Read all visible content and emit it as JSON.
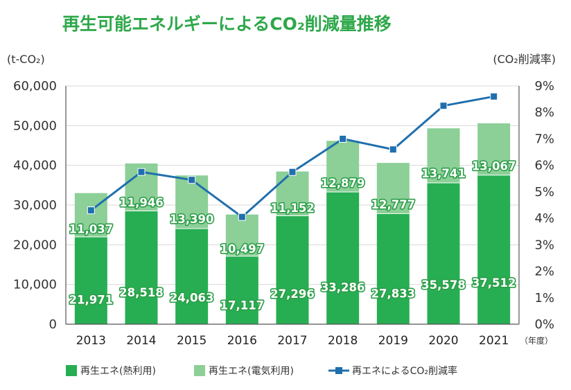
{
  "chart_data": {
    "type": "bar",
    "title": "再生可能エネルギーによるCO₂削減量推移",
    "ylabel": "(t-CO₂)",
    "y2label": "(CO₂削減率)",
    "xunit": "（年度）",
    "categories": [
      "2013",
      "2014",
      "2015",
      "2016",
      "2017",
      "2018",
      "2019",
      "2020",
      "2021"
    ],
    "ylim": [
      0,
      60000
    ],
    "y_ticks": [
      "0",
      "10,000",
      "20,000",
      "30,000",
      "40,000",
      "50,000",
      "60,000"
    ],
    "y2lim": [
      0,
      9
    ],
    "y2_ticks": [
      "0%",
      "1%",
      "2%",
      "3%",
      "4%",
      "5%",
      "6%",
      "7%",
      "8%",
      "9%"
    ],
    "grid": true,
    "legend_position": "bottom",
    "series": [
      {
        "name": "再生エネ(熱利用)",
        "kind": "bar-stack",
        "color": "#27ae53",
        "values": [
          21971,
          28518,
          24063,
          17117,
          27296,
          33286,
          27833,
          35578,
          37512
        ],
        "labels": [
          "21,971",
          "28,518",
          "24,063",
          "17,117",
          "27,296",
          "33,286",
          "27,833",
          "35,578",
          "37,512"
        ]
      },
      {
        "name": "再生エネ(電気利用)",
        "kind": "bar-stack",
        "color": "#8ccf97",
        "values": [
          11037,
          11946,
          13390,
          10497,
          11152,
          12879,
          12777,
          13741,
          13067
        ],
        "labels": [
          "11,037",
          "11,946",
          "13,390",
          "10,497",
          "11,152",
          "12,879",
          "12,777",
          "13,741",
          "13,067"
        ]
      },
      {
        "name": "再エネによるCO₂削減率",
        "kind": "line",
        "axis": "right",
        "color": "#1f6fad",
        "values": [
          4.3,
          5.75,
          5.45,
          4.05,
          5.75,
          7.0,
          6.6,
          8.25,
          8.6
        ]
      }
    ]
  }
}
